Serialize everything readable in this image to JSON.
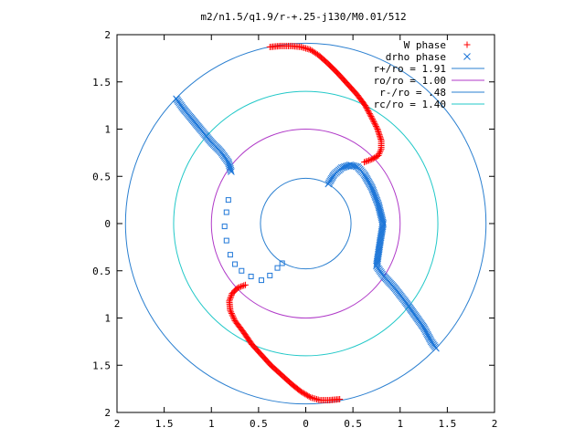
{
  "chart_data": {
    "type": "scatter",
    "title": "m2/n1.5/q1.9/r-+.25-j130/M0.01/512",
    "xlim": [
      -2,
      2
    ],
    "ylim": [
      -2,
      2
    ],
    "grid": false,
    "legend_placement": "top-right",
    "x_ticks": [
      {
        "value": -2,
        "label": "2"
      },
      {
        "value": -1.5,
        "label": "1.5"
      },
      {
        "value": -1,
        "label": "1"
      },
      {
        "value": -0.5,
        "label": "0.5"
      },
      {
        "value": 0,
        "label": "0"
      },
      {
        "value": 0.5,
        "label": "0.5"
      },
      {
        "value": 1,
        "label": "1"
      },
      {
        "value": 1.5,
        "label": "1.5"
      },
      {
        "value": 2,
        "label": "2"
      }
    ],
    "y_ticks": [
      {
        "value": 2,
        "label": "2"
      },
      {
        "value": 1.5,
        "label": "1.5"
      },
      {
        "value": 1,
        "label": "1"
      },
      {
        "value": 0.5,
        "label": "0.5"
      },
      {
        "value": 0,
        "label": "0"
      },
      {
        "value": -0.5,
        "label": "0.5"
      },
      {
        "value": -1,
        "label": "1"
      },
      {
        "value": -1.5,
        "label": "1.5"
      },
      {
        "value": -2,
        "label": "2"
      }
    ],
    "series": [
      {
        "name": "W phase",
        "marker": "plus",
        "color": "#ff0000",
        "points": [
          [
            -0.38,
            1.87
          ],
          [
            -0.27,
            1.88
          ],
          [
            -0.15,
            1.88
          ],
          [
            -0.05,
            1.87
          ],
          [
            0.05,
            1.84
          ],
          [
            0.14,
            1.78
          ],
          [
            0.24,
            1.69
          ],
          [
            0.34,
            1.59
          ],
          [
            0.44,
            1.48
          ],
          [
            0.54,
            1.37
          ],
          [
            0.63,
            1.25
          ],
          [
            0.7,
            1.12
          ],
          [
            0.76,
            1.0
          ],
          [
            0.8,
            0.88
          ],
          [
            0.8,
            0.79
          ],
          [
            0.77,
            0.72
          ],
          [
            0.7,
            0.68
          ],
          [
            0.62,
            0.65
          ],
          [
            -0.64,
            -0.65
          ],
          [
            -0.72,
            -0.68
          ],
          [
            -0.78,
            -0.74
          ],
          [
            -0.81,
            -0.82
          ],
          [
            -0.8,
            -0.92
          ],
          [
            -0.75,
            -1.03
          ],
          [
            -0.66,
            -1.15
          ],
          [
            -0.57,
            -1.28
          ],
          [
            -0.47,
            -1.39
          ],
          [
            -0.37,
            -1.5
          ],
          [
            -0.26,
            -1.6
          ],
          [
            -0.15,
            -1.7
          ],
          [
            -0.05,
            -1.78
          ],
          [
            0.05,
            -1.84
          ],
          [
            0.15,
            -1.87
          ],
          [
            0.25,
            -1.87
          ],
          [
            0.36,
            -1.86
          ]
        ]
      },
      {
        "name": "drho phase",
        "marker": "cross",
        "color": "#1f77d8",
        "points": [
          [
            -1.37,
            1.32
          ],
          [
            -1.3,
            1.22
          ],
          [
            -1.2,
            1.1
          ],
          [
            -1.1,
            0.98
          ],
          [
            -1.0,
            0.86
          ],
          [
            -0.9,
            0.76
          ],
          [
            -0.82,
            0.65
          ],
          [
            -0.79,
            0.55
          ],
          [
            0.24,
            0.42
          ],
          [
            0.3,
            0.52
          ],
          [
            0.38,
            0.59
          ],
          [
            0.47,
            0.62
          ],
          [
            0.55,
            0.6
          ],
          [
            0.62,
            0.52
          ],
          [
            0.7,
            0.38
          ],
          [
            0.77,
            0.2
          ],
          [
            0.82,
            0.0
          ],
          [
            0.79,
            -0.18
          ],
          [
            0.75,
            -0.45
          ],
          [
            0.82,
            -0.55
          ],
          [
            0.94,
            -0.68
          ],
          [
            1.05,
            -0.82
          ],
          [
            1.15,
            -0.96
          ],
          [
            1.25,
            -1.1
          ],
          [
            1.33,
            -1.25
          ],
          [
            1.38,
            -1.32
          ]
        ]
      },
      {
        "name": "drho phase",
        "marker": "square",
        "color": "#1f77d8",
        "points": [
          [
            -0.82,
            0.25
          ],
          [
            -0.84,
            0.12
          ],
          [
            -0.86,
            -0.03
          ],
          [
            -0.84,
            -0.18
          ],
          [
            -0.8,
            -0.33
          ],
          [
            -0.75,
            -0.43
          ],
          [
            -0.68,
            -0.5
          ],
          [
            -0.58,
            -0.56
          ],
          [
            -0.47,
            -0.6
          ],
          [
            -0.38,
            -0.55
          ],
          [
            -0.3,
            -0.47
          ],
          [
            -0.25,
            -0.42
          ]
        ]
      }
    ],
    "circles": [
      {
        "name": "r+/ro = 1.91",
        "radius": 1.91,
        "color": "#2a7fd0"
      },
      {
        "name": "ro/ro = 1.00",
        "radius": 1.0,
        "color": "#b03ac8"
      },
      {
        "name": "r-/ro = .48",
        "radius": 0.48,
        "color": "#2a7fd0"
      },
      {
        "name": "rc/ro = 1.40",
        "radius": 1.4,
        "color": "#22c8c8"
      }
    ]
  }
}
